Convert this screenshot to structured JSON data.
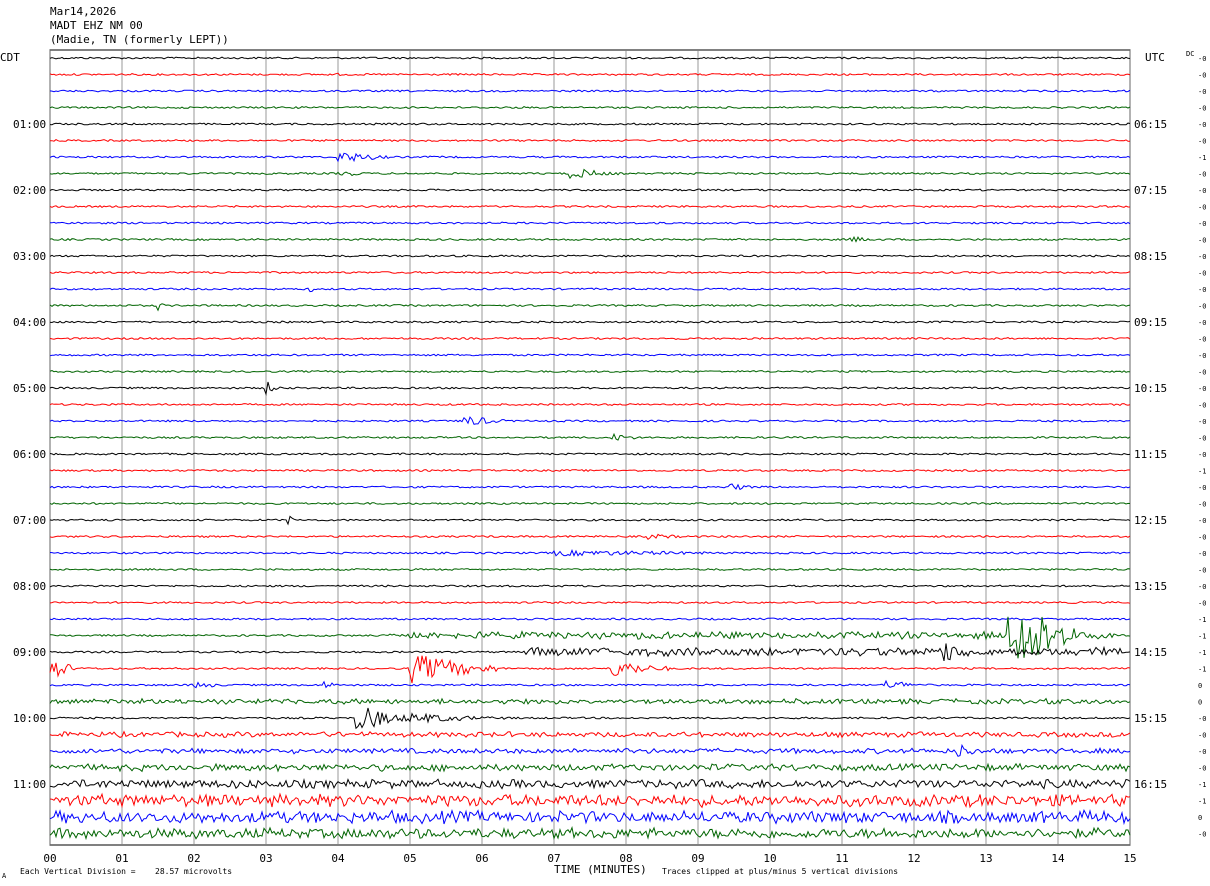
{
  "header": {
    "date": "Mar14,2026",
    "station": "MADT EHZ NM 00",
    "location": "(Madie, TN (formerly LEPT))"
  },
  "tz_left": "CDT",
  "tz_right": "UTC",
  "dc_label": "DC",
  "footer": {
    "scale_prefix": "Each Vertical Division =",
    "scale_value": "28.57 microvolts",
    "clip_note": "Traces clipped at plus/minus 5 vertical divisions",
    "mark": "A"
  },
  "chart_data": {
    "type": "line",
    "xlabel": "TIME (MINUTES)",
    "x_ticks": [
      "00",
      "01",
      "02",
      "03",
      "04",
      "05",
      "06",
      "07",
      "08",
      "09",
      "10",
      "11",
      "12",
      "13",
      "14",
      "15"
    ],
    "xlim": [
      0,
      15
    ],
    "trace_count": 48,
    "trace_colors": [
      "#000000",
      "#ff0000",
      "#0000ff",
      "#006400"
    ],
    "left_hour_labels": [
      {
        "trace": 4,
        "label": "01:00"
      },
      {
        "trace": 8,
        "label": "02:00"
      },
      {
        "trace": 12,
        "label": "03:00"
      },
      {
        "trace": 16,
        "label": "04:00"
      },
      {
        "trace": 20,
        "label": "05:00"
      },
      {
        "trace": 24,
        "label": "06:00"
      },
      {
        "trace": 28,
        "label": "07:00"
      },
      {
        "trace": 32,
        "label": "08:00"
      },
      {
        "trace": 36,
        "label": "09:00"
      },
      {
        "trace": 40,
        "label": "10:00"
      },
      {
        "trace": 44,
        "label": "11:00"
      }
    ],
    "right_hour_labels": [
      {
        "trace": 4,
        "label": "06:15"
      },
      {
        "trace": 8,
        "label": "07:15"
      },
      {
        "trace": 12,
        "label": "08:15"
      },
      {
        "trace": 16,
        "label": "09:15"
      },
      {
        "trace": 20,
        "label": "10:15"
      },
      {
        "trace": 24,
        "label": "11:15"
      },
      {
        "trace": 28,
        "label": "12:15"
      },
      {
        "trace": 32,
        "label": "13:15"
      },
      {
        "trace": 36,
        "label": "14:15"
      },
      {
        "trace": 40,
        "label": "15:15"
      },
      {
        "trace": 44,
        "label": "16:15"
      }
    ],
    "dc_offsets": [
      "-0",
      "-0",
      "-0",
      "-0",
      "-0",
      "-0",
      "-1",
      "-0",
      "-0",
      "-0",
      "-0",
      "-0",
      "-0",
      "-0",
      "-0",
      "-0",
      "-0",
      "-0",
      "-0",
      "-0",
      "-0",
      "-0",
      "-0",
      "-0",
      "-0",
      "-1",
      "-0",
      "-0",
      "-0",
      "-0",
      "-0",
      "-0",
      "-0",
      "-0",
      "-1",
      "-1",
      "-1",
      "-1",
      "0",
      "0",
      "-0",
      "-0",
      "-0",
      "-0",
      "-1",
      "-1",
      "0",
      "-0"
    ],
    "events": [
      {
        "trace": 1,
        "minute": 3.9,
        "duration": 0.3,
        "amp": 2
      },
      {
        "trace": 6,
        "minute": 4.0,
        "duration": 0.8,
        "amp": 6
      },
      {
        "trace": 7,
        "minute": 4.0,
        "duration": 0.6,
        "amp": 3
      },
      {
        "trace": 7,
        "minute": 7.2,
        "duration": 0.7,
        "amp": 6
      },
      {
        "trace": 11,
        "minute": 11.1,
        "duration": 0.6,
        "amp": 3
      },
      {
        "trace": 14,
        "minute": 3.6,
        "duration": 0.1,
        "amp": 4
      },
      {
        "trace": 15,
        "minute": 1.5,
        "duration": 0.1,
        "amp": 5
      },
      {
        "trace": 20,
        "minute": 3.0,
        "duration": 0.2,
        "amp": 7
      },
      {
        "trace": 22,
        "minute": 5.7,
        "duration": 0.7,
        "amp": 6
      },
      {
        "trace": 23,
        "minute": 7.8,
        "duration": 0.5,
        "amp": 4
      },
      {
        "trace": 26,
        "minute": 9.4,
        "duration": 0.5,
        "amp": 4
      },
      {
        "trace": 28,
        "minute": 3.3,
        "duration": 0.1,
        "amp": 6
      },
      {
        "trace": 29,
        "minute": 8.3,
        "duration": 0.7,
        "amp": 3
      },
      {
        "trace": 30,
        "minute": 7.0,
        "duration": 3.5,
        "amp": 3
      },
      {
        "trace": 35,
        "minute": 4.7,
        "duration": 10.2,
        "amp": 4
      },
      {
        "trace": 35,
        "minute": 13.3,
        "duration": 1.0,
        "amp": 40
      },
      {
        "trace": 36,
        "minute": 6.6,
        "duration": 8.3,
        "amp": 5
      },
      {
        "trace": 36,
        "minute": 12.4,
        "duration": 0.5,
        "amp": 12
      },
      {
        "trace": 37,
        "minute": 0.0,
        "duration": 0.4,
        "amp": 12
      },
      {
        "trace": 37,
        "minute": 5.0,
        "duration": 1.2,
        "amp": 15
      },
      {
        "trace": 37,
        "minute": 7.8,
        "duration": 0.8,
        "amp": 9
      },
      {
        "trace": 38,
        "minute": 2.0,
        "duration": 0.5,
        "amp": 4
      },
      {
        "trace": 38,
        "minute": 3.8,
        "duration": 0.2,
        "amp": 5
      },
      {
        "trace": 38,
        "minute": 11.6,
        "duration": 0.6,
        "amp": 5
      },
      {
        "trace": 39,
        "minute": 0.0,
        "duration": 15.0,
        "amp": 3
      },
      {
        "trace": 40,
        "minute": 4.2,
        "duration": 0.8,
        "amp": 14
      },
      {
        "trace": 40,
        "minute": 5.0,
        "duration": 1.4,
        "amp": 5
      },
      {
        "trace": 41,
        "minute": 0.0,
        "duration": 15.0,
        "amp": 3
      },
      {
        "trace": 42,
        "minute": 0.0,
        "duration": 15.0,
        "amp": 3
      },
      {
        "trace": 42,
        "minute": 12.6,
        "duration": 0.4,
        "amp": 8
      },
      {
        "trace": 43,
        "minute": 0.0,
        "duration": 15.0,
        "amp": 4
      },
      {
        "trace": 44,
        "minute": 0.0,
        "duration": 15.0,
        "amp": 5
      },
      {
        "trace": 45,
        "minute": 0.0,
        "duration": 15.0,
        "amp": 7
      },
      {
        "trace": 46,
        "minute": 0.0,
        "duration": 15.0,
        "amp": 7
      },
      {
        "trace": 47,
        "minute": 0.0,
        "duration": 15.0,
        "amp": 6
      }
    ]
  }
}
